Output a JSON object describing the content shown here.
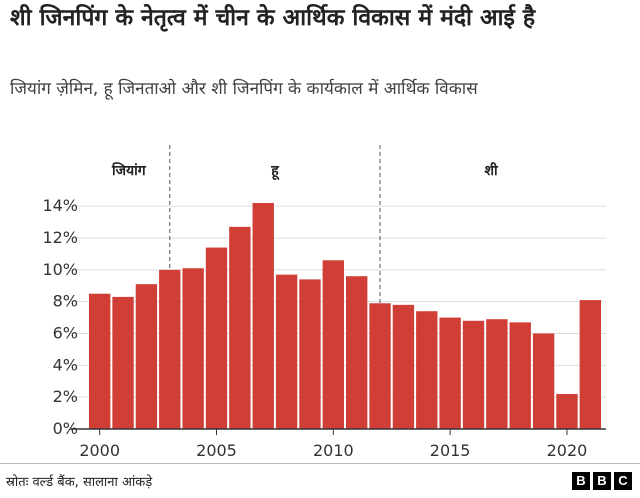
{
  "title": "शी जिनपिंग के नेतृत्व में चीन के आर्थिक विकास में मंदी आई है",
  "subtitle": "जियांग ज़ेमिन, हू जिनताओ और शी जिनपिंग के कार्यकाल में आर्थिक विकास",
  "source": "स्रोतः वर्ल्ड बैंक, सालाना आंकड़े",
  "logo": [
    "B",
    "B",
    "C"
  ],
  "colors": {
    "bar": "#d13e36",
    "axis": "#333333",
    "grid": "#dddddd"
  },
  "chart_data": {
    "type": "bar",
    "x": [
      2000,
      2001,
      2002,
      2003,
      2004,
      2005,
      2006,
      2007,
      2008,
      2009,
      2010,
      2011,
      2012,
      2013,
      2014,
      2015,
      2016,
      2017,
      2018,
      2019,
      2020,
      2021
    ],
    "values": [
      8.5,
      8.3,
      9.1,
      10.0,
      10.1,
      11.4,
      12.7,
      14.2,
      9.7,
      9.4,
      10.6,
      9.6,
      7.9,
      7.8,
      7.4,
      7.0,
      6.8,
      6.9,
      6.7,
      6.0,
      2.2,
      8.1
    ],
    "y_ticks": [
      "0%",
      "2%",
      "4%",
      "6%",
      "8%",
      "10%",
      "12%",
      "14%"
    ],
    "ylim": [
      0,
      14.2
    ],
    "x_ticks": [
      "2000",
      "2005",
      "2010",
      "2015",
      "2020"
    ],
    "grid": true,
    "eras": [
      {
        "label": "जियांग",
        "start": 2000,
        "end": 2003
      },
      {
        "label": "हू",
        "start": 2003,
        "end": 2012
      },
      {
        "label": "शी",
        "start": 2012,
        "end": 2021
      }
    ]
  }
}
